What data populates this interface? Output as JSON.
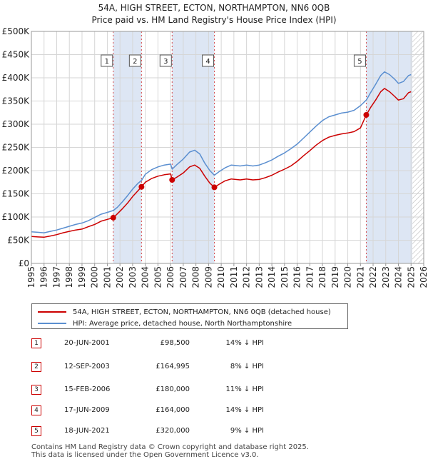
{
  "title_line1": "54A, HIGH STREET, ECTON, NORTHAMPTON, NN6 0QB",
  "title_line2": "Price paid vs. HM Land Registry's House Price Index (HPI)",
  "legend": {
    "property": "54A, HIGH STREET, ECTON, NORTHAMPTON, NN6 0QB (detached house)",
    "hpi": "HPI: Average price, detached house, North Northamptonshire"
  },
  "colors": {
    "property": "#cc0000",
    "hpi": "#5b8fd0",
    "shade": "#dde6f4",
    "grid": "#d6d6d6"
  },
  "sales": [
    {
      "num": "1",
      "date": "20-JUN-2001",
      "price": "£98,500",
      "hpi": "14% ↓ HPI"
    },
    {
      "num": "2",
      "date": "12-SEP-2003",
      "price": "£164,995",
      "hpi": "8% ↓ HPI"
    },
    {
      "num": "3",
      "date": "15-FEB-2006",
      "price": "£180,000",
      "hpi": "11% ↓ HPI"
    },
    {
      "num": "4",
      "date": "17-JUN-2009",
      "price": "£164,000",
      "hpi": "14% ↓ HPI"
    },
    {
      "num": "5",
      "date": "18-JUN-2021",
      "price": "£320,000",
      "hpi": "9% ↓ HPI"
    }
  ],
  "footer_line1": "Contains HM Land Registry data © Crown copyright and database right 2025.",
  "footer_line2": "This data is licensed under the Open Government Licence v3.0.",
  "chart_data": {
    "type": "line",
    "title": "54A, HIGH STREET, ECTON, NORTHAMPTON, NN6 0QB — Price paid vs. HM Land Registry's House Price Index (HPI)",
    "xlabel": "",
    "ylabel": "",
    "xlim": [
      1995,
      2026
    ],
    "ylim": [
      0,
      500000
    ],
    "grid": true,
    "legend_position": "bottom",
    "y_ticks": [
      {
        "value": 0,
        "label": "£0"
      },
      {
        "value": 50000,
        "label": "£50K"
      },
      {
        "value": 100000,
        "label": "£100K"
      },
      {
        "value": 150000,
        "label": "£150K"
      },
      {
        "value": 200000,
        "label": "£200K"
      },
      {
        "value": 250000,
        "label": "£250K"
      },
      {
        "value": 300000,
        "label": "£300K"
      },
      {
        "value": 350000,
        "label": "£350K"
      },
      {
        "value": 400000,
        "label": "£400K"
      },
      {
        "value": 450000,
        "label": "£450K"
      },
      {
        "value": 500000,
        "label": "£500K"
      }
    ],
    "x_ticks": [
      "1995",
      "1996",
      "1997",
      "1998",
      "1999",
      "2000",
      "2001",
      "2002",
      "2003",
      "2004",
      "2005",
      "2006",
      "2007",
      "2008",
      "2009",
      "2010",
      "2011",
      "2012",
      "2013",
      "2014",
      "2015",
      "2016",
      "2017",
      "2018",
      "2019",
      "2020",
      "2021",
      "2022",
      "2023",
      "2024",
      "2025",
      "2026"
    ],
    "shaded_periods": [
      {
        "from": 2001.47,
        "to": 2003.7
      },
      {
        "from": 2006.12,
        "to": 2009.46
      },
      {
        "from": 2021.46,
        "to": 2025.1
      }
    ],
    "hatched_from": 2025.1,
    "sale_markers": [
      {
        "label": "1",
        "x": 2001.47,
        "y": 98500
      },
      {
        "label": "2",
        "x": 2003.7,
        "y": 164995
      },
      {
        "label": "3",
        "x": 2006.12,
        "y": 180000
      },
      {
        "label": "4",
        "x": 2009.46,
        "y": 164000
      },
      {
        "label": "5",
        "x": 2021.46,
        "y": 320000
      }
    ],
    "series": [
      {
        "name": "54A, HIGH STREET, ECTON, NORTHAMPTON, NN6 0QB (detached house)",
        "color": "#cc0000",
        "points": [
          [
            1995.0,
            58000
          ],
          [
            1995.5,
            57000
          ],
          [
            1996.0,
            56500
          ],
          [
            1996.5,
            59000
          ],
          [
            1997.0,
            62000
          ],
          [
            1997.5,
            66000
          ],
          [
            1998.0,
            69000
          ],
          [
            1998.5,
            72000
          ],
          [
            1999.0,
            74000
          ],
          [
            1999.5,
            79000
          ],
          [
            2000.0,
            84000
          ],
          [
            2000.5,
            91000
          ],
          [
            2001.0,
            95000
          ],
          [
            2001.47,
            98500
          ],
          [
            2001.8,
            107000
          ],
          [
            2002.2,
            118000
          ],
          [
            2002.6,
            130000
          ],
          [
            2003.0,
            144000
          ],
          [
            2003.4,
            156000
          ],
          [
            2003.7,
            164995
          ],
          [
            2004.0,
            175000
          ],
          [
            2004.5,
            183000
          ],
          [
            2005.0,
            188000
          ],
          [
            2005.5,
            191000
          ],
          [
            2006.0,
            193000
          ],
          [
            2006.12,
            180000
          ],
          [
            2006.5,
            186000
          ],
          [
            2007.0,
            195000
          ],
          [
            2007.5,
            208000
          ],
          [
            2007.9,
            212000
          ],
          [
            2008.3,
            205000
          ],
          [
            2008.7,
            188000
          ],
          [
            2009.1,
            173000
          ],
          [
            2009.46,
            164000
          ],
          [
            2009.8,
            170000
          ],
          [
            2010.3,
            178000
          ],
          [
            2010.8,
            182000
          ],
          [
            2011.5,
            180000
          ],
          [
            2012.0,
            182000
          ],
          [
            2012.5,
            180000
          ],
          [
            2013.0,
            181000
          ],
          [
            2013.5,
            185000
          ],
          [
            2014.0,
            190000
          ],
          [
            2014.5,
            197000
          ],
          [
            2015.0,
            203000
          ],
          [
            2015.5,
            210000
          ],
          [
            2016.0,
            220000
          ],
          [
            2016.5,
            232000
          ],
          [
            2017.0,
            243000
          ],
          [
            2017.5,
            255000
          ],
          [
            2018.0,
            265000
          ],
          [
            2018.5,
            272000
          ],
          [
            2019.0,
            276000
          ],
          [
            2019.5,
            279000
          ],
          [
            2020.0,
            281000
          ],
          [
            2020.5,
            284000
          ],
          [
            2021.0,
            292000
          ],
          [
            2021.46,
            320000
          ],
          [
            2021.8,
            336000
          ],
          [
            2022.2,
            352000
          ],
          [
            2022.6,
            370000
          ],
          [
            2022.9,
            377000
          ],
          [
            2023.3,
            370000
          ],
          [
            2023.7,
            360000
          ],
          [
            2024.0,
            352000
          ],
          [
            2024.4,
            355000
          ],
          [
            2024.8,
            368000
          ],
          [
            2025.0,
            370000
          ]
        ]
      },
      {
        "name": "HPI: Average price, detached house, North Northamptonshire",
        "color": "#5b8fd0",
        "points": [
          [
            1995.0,
            68000
          ],
          [
            1995.5,
            67000
          ],
          [
            1996.0,
            66000
          ],
          [
            1996.5,
            69000
          ],
          [
            1997.0,
            72000
          ],
          [
            1997.5,
            76000
          ],
          [
            1998.0,
            80000
          ],
          [
            1998.5,
            84000
          ],
          [
            1999.0,
            87000
          ],
          [
            1999.5,
            92000
          ],
          [
            2000.0,
            99000
          ],
          [
            2000.5,
            106000
          ],
          [
            2001.0,
            110000
          ],
          [
            2001.47,
            114000
          ],
          [
            2001.8,
            121000
          ],
          [
            2002.2,
            133000
          ],
          [
            2002.6,
            146000
          ],
          [
            2003.0,
            160000
          ],
          [
            2003.4,
            172000
          ],
          [
            2003.7,
            179000
          ],
          [
            2004.0,
            192000
          ],
          [
            2004.5,
            202000
          ],
          [
            2005.0,
            208000
          ],
          [
            2005.5,
            212000
          ],
          [
            2006.0,
            214000
          ],
          [
            2006.12,
            203000
          ],
          [
            2006.5,
            213000
          ],
          [
            2007.0,
            225000
          ],
          [
            2007.5,
            240000
          ],
          [
            2007.9,
            244000
          ],
          [
            2008.3,
            236000
          ],
          [
            2008.7,
            216000
          ],
          [
            2009.1,
            200000
          ],
          [
            2009.46,
            190000
          ],
          [
            2009.8,
            197000
          ],
          [
            2010.3,
            206000
          ],
          [
            2010.8,
            212000
          ],
          [
            2011.5,
            210000
          ],
          [
            2012.0,
            212000
          ],
          [
            2012.5,
            210000
          ],
          [
            2013.0,
            212000
          ],
          [
            2013.5,
            217000
          ],
          [
            2014.0,
            223000
          ],
          [
            2014.5,
            231000
          ],
          [
            2015.0,
            238000
          ],
          [
            2015.5,
            247000
          ],
          [
            2016.0,
            257000
          ],
          [
            2016.5,
            270000
          ],
          [
            2017.0,
            283000
          ],
          [
            2017.5,
            296000
          ],
          [
            2018.0,
            308000
          ],
          [
            2018.5,
            316000
          ],
          [
            2019.0,
            320000
          ],
          [
            2019.5,
            324000
          ],
          [
            2020.0,
            326000
          ],
          [
            2020.5,
            330000
          ],
          [
            2021.0,
            340000
          ],
          [
            2021.46,
            352000
          ],
          [
            2021.8,
            368000
          ],
          [
            2022.2,
            386000
          ],
          [
            2022.6,
            405000
          ],
          [
            2022.9,
            413000
          ],
          [
            2023.3,
            407000
          ],
          [
            2023.7,
            397000
          ],
          [
            2024.0,
            388000
          ],
          [
            2024.4,
            392000
          ],
          [
            2024.8,
            405000
          ],
          [
            2025.0,
            407000
          ]
        ]
      }
    ]
  }
}
